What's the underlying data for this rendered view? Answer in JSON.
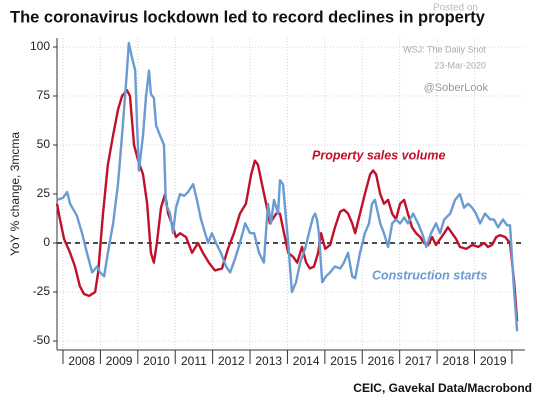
{
  "chart_data": {
    "type": "line",
    "title": "The coronavirus lockdown led to record declines in property",
    "y_label": "YoY % change, 3mcma",
    "source": "CEIC, Gavekal Data/Macrobond",
    "watermark": [
      "Posted on",
      "WSJ: The Daily Shot",
      "23-Mar-2020",
      "@SoberLook"
    ],
    "xlim": [
      2007.84,
      2020.35
    ],
    "xticks": [
      2008,
      2009,
      2010,
      2011,
      2012,
      2013,
      2014,
      2015,
      2016,
      2017,
      2018,
      2019
    ],
    "ylim": [
      -54.6,
      104.6
    ],
    "yticks": [
      100,
      75,
      50,
      25,
      0,
      -25,
      -50
    ],
    "grid": true,
    "zero_line": true,
    "series": [
      {
        "name": "Property sales volume",
        "color": "#c0102a",
        "x": [
          2007.84,
          2007.92,
          2008.03,
          2008.19,
          2008.32,
          2008.45,
          2008.56,
          2008.7,
          2008.86,
          2008.94,
          2009.07,
          2009.2,
          2009.34,
          2009.47,
          2009.58,
          2009.71,
          2009.79,
          2009.9,
          2010.01,
          2010.14,
          2010.25,
          2010.35,
          2010.43,
          2010.51,
          2010.62,
          2010.73,
          2010.81,
          2010.91,
          2011.02,
          2011.13,
          2011.29,
          2011.45,
          2011.61,
          2011.74,
          2011.9,
          2012.06,
          2012.25,
          2012.41,
          2012.57,
          2012.73,
          2012.89,
          2013.03,
          2013.13,
          2013.21,
          2013.32,
          2013.43,
          2013.53,
          2013.7,
          2013.8,
          2013.91,
          2014.02,
          2014.15,
          2014.26,
          2014.39,
          2014.5,
          2014.6,
          2014.71,
          2014.82,
          2014.9,
          2015.01,
          2015.14,
          2015.27,
          2015.41,
          2015.51,
          2015.62,
          2015.73,
          2015.81,
          2015.94,
          2016.07,
          2016.21,
          2016.29,
          2016.37,
          2016.48,
          2016.58,
          2016.69,
          2016.8,
          2016.9,
          2017.01,
          2017.12,
          2017.22,
          2017.33,
          2017.44,
          2017.55,
          2017.65,
          2017.76,
          2017.87,
          2017.97,
          2018.08,
          2018.19,
          2018.29,
          2018.4,
          2018.51,
          2018.61,
          2018.78,
          2018.94,
          2019.1,
          2019.26,
          2019.36,
          2019.47,
          2019.58,
          2019.68,
          2019.82,
          2019.95,
          2020.06,
          2020.14
        ],
        "values": [
          20,
          12,
          2,
          -5,
          -12,
          -22,
          -26,
          -27,
          -25,
          -15,
          15,
          40,
          55,
          68,
          75,
          78,
          75,
          50,
          42,
          35,
          20,
          -5,
          -10,
          0,
          18,
          25,
          15,
          10,
          3,
          5,
          3,
          -5,
          0,
          -5,
          -10,
          -14,
          -13,
          -3,
          5,
          15,
          20,
          35,
          42,
          40,
          30,
          20,
          10,
          15,
          15,
          5,
          -5,
          -7,
          -10,
          -2,
          -10,
          -13,
          -12,
          -5,
          5,
          -3,
          -1,
          8,
          16,
          17,
          15,
          10,
          5,
          15,
          25,
          35,
          37,
          35,
          25,
          20,
          22,
          15,
          12,
          20,
          22,
          15,
          8,
          5,
          3,
          0,
          -1,
          3,
          -1,
          2,
          5,
          8,
          5,
          2,
          -2,
          -3,
          -1,
          -2,
          0,
          -2,
          -1,
          3,
          4,
          3,
          0,
          -20,
          -40
        ]
      },
      {
        "name": "Construction starts",
        "color": "#6a9bd1",
        "x": [
          2007.84,
          2008.0,
          2008.11,
          2008.19,
          2008.37,
          2008.51,
          2008.64,
          2008.78,
          2008.91,
          2008.99,
          2009.1,
          2009.2,
          2009.34,
          2009.47,
          2009.6,
          2009.71,
          2009.76,
          2009.84,
          2009.93,
          2009.98,
          2010.03,
          2010.14,
          2010.22,
          2010.3,
          2010.35,
          2010.43,
          2010.49,
          2010.59,
          2010.7,
          2010.75,
          2010.86,
          2010.94,
          2011.02,
          2011.13,
          2011.24,
          2011.34,
          2011.48,
          2011.58,
          2011.69,
          2011.8,
          2011.88,
          2011.98,
          2012.09,
          2012.22,
          2012.36,
          2012.47,
          2012.6,
          2012.73,
          2012.87,
          2013.0,
          2013.11,
          2013.24,
          2013.37,
          2013.48,
          2013.56,
          2013.64,
          2013.75,
          2013.8,
          2013.88,
          2014.02,
          2014.12,
          2014.23,
          2014.34,
          2014.47,
          2014.6,
          2014.68,
          2014.74,
          2014.79,
          2014.84,
          2014.93,
          2015.03,
          2015.14,
          2015.27,
          2015.41,
          2015.51,
          2015.62,
          2015.73,
          2015.81,
          2015.94,
          2016.07,
          2016.18,
          2016.26,
          2016.34,
          2016.48,
          2016.58,
          2016.69,
          2016.8,
          2016.9,
          2017.01,
          2017.12,
          2017.22,
          2017.36,
          2017.49,
          2017.6,
          2017.71,
          2017.84,
          2017.97,
          2018.08,
          2018.19,
          2018.35,
          2018.48,
          2018.61,
          2018.72,
          2018.83,
          2018.94,
          2019.04,
          2019.15,
          2019.28,
          2019.42,
          2019.52,
          2019.63,
          2019.76,
          2019.87,
          2019.95,
          2020.06,
          2020.14
        ],
        "values": [
          22,
          23,
          26,
          20,
          14,
          5,
          -5,
          -15,
          -12,
          -15,
          -17,
          -5,
          10,
          30,
          60,
          88,
          102,
          95,
          88,
          60,
          37,
          55,
          75,
          88,
          76,
          74,
          60,
          55,
          50,
          20,
          15,
          5,
          18,
          25,
          24,
          26,
          30,
          22,
          12,
          5,
          0,
          5,
          0,
          -5,
          -12,
          -15,
          -8,
          0,
          10,
          5,
          5,
          -5,
          -10,
          20,
          10,
          22,
          15,
          32,
          30,
          0,
          -25,
          -20,
          -10,
          -3,
          7,
          13,
          15,
          12,
          5,
          -20,
          -17,
          -15,
          -12,
          -13,
          -10,
          -5,
          -17,
          -18,
          -5,
          5,
          10,
          20,
          22,
          10,
          5,
          -2,
          10,
          12,
          10,
          13,
          10,
          15,
          10,
          5,
          -2,
          5,
          10,
          5,
          12,
          15,
          22,
          25,
          18,
          20,
          18,
          15,
          10,
          15,
          12,
          12,
          8,
          12,
          9,
          9,
          -25,
          -45
        ]
      }
    ]
  }
}
